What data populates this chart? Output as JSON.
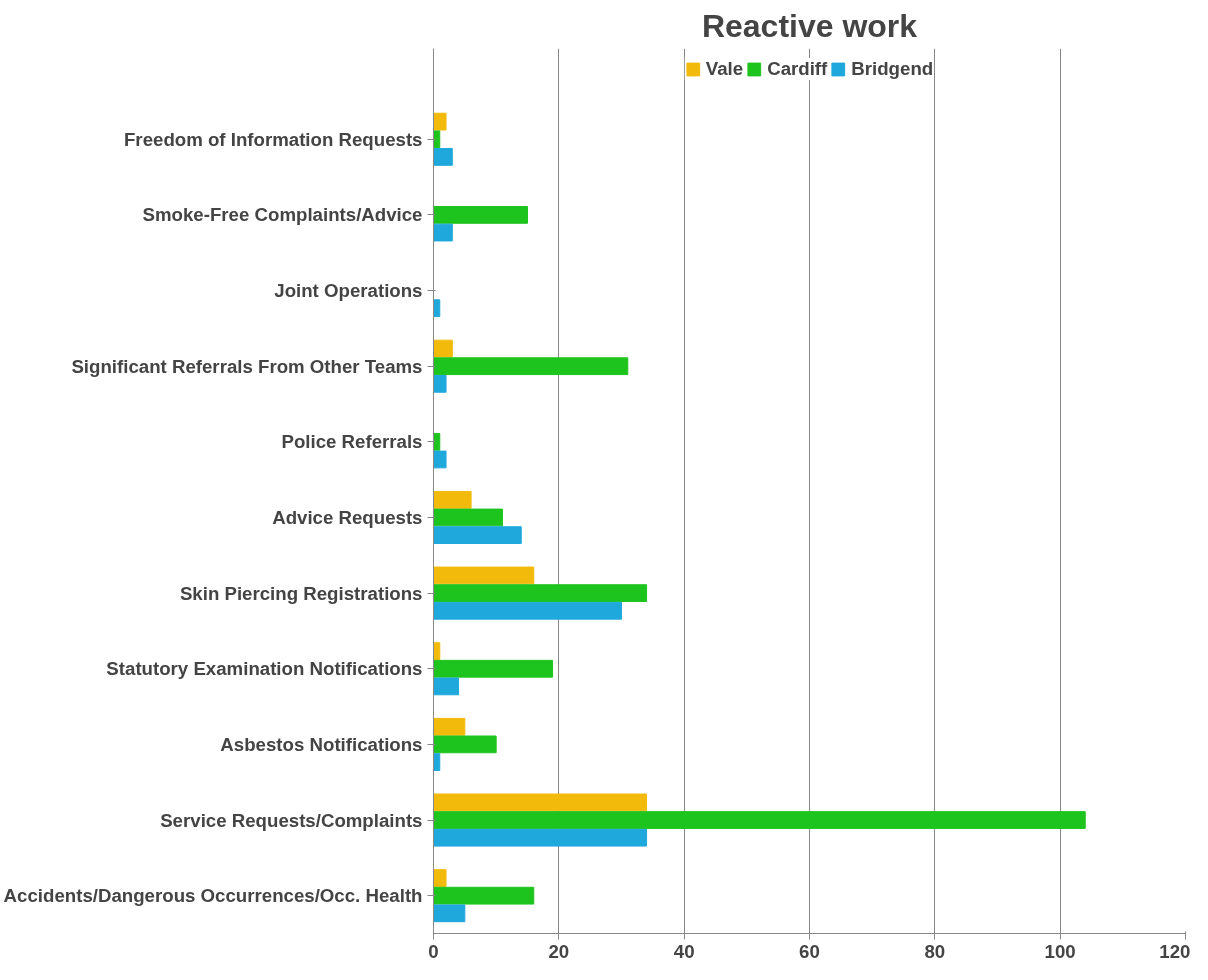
{
  "chart_data": {
    "type": "bar",
    "orientation": "horizontal",
    "title": "Reactive work",
    "categories": [
      "Freedom of Information Requests",
      "Smoke-Free Complaints/Advice",
      "Joint Operations",
      "Significant Referrals From Other Teams",
      "Police Referrals",
      "Advice Requests",
      "Skin Piercing Registrations",
      "Statutory Examination Notifications",
      "Asbestos Notifications",
      "Service Requests/Complaints",
      "Accidents/Dangerous Occurrences/Occ. Health"
    ],
    "series": [
      {
        "name": "Vale",
        "color": "#f2bb0c",
        "values": [
          2,
          0,
          0,
          3,
          0,
          6,
          16,
          1,
          5,
          34,
          2
        ]
      },
      {
        "name": "Cardiff",
        "color": "#1ec41e",
        "values": [
          1,
          15,
          0,
          31,
          1,
          11,
          34,
          19,
          10,
          104,
          16
        ]
      },
      {
        "name": "Bridgend",
        "color": "#1ea8dc",
        "values": [
          3,
          3,
          1,
          2,
          2,
          14,
          30,
          4,
          1,
          34,
          5
        ]
      }
    ],
    "xlim": [
      0,
      120
    ],
    "xticks": [
      0,
      20,
      40,
      60,
      80,
      100,
      120
    ],
    "grid": "x",
    "legend": "top"
  }
}
